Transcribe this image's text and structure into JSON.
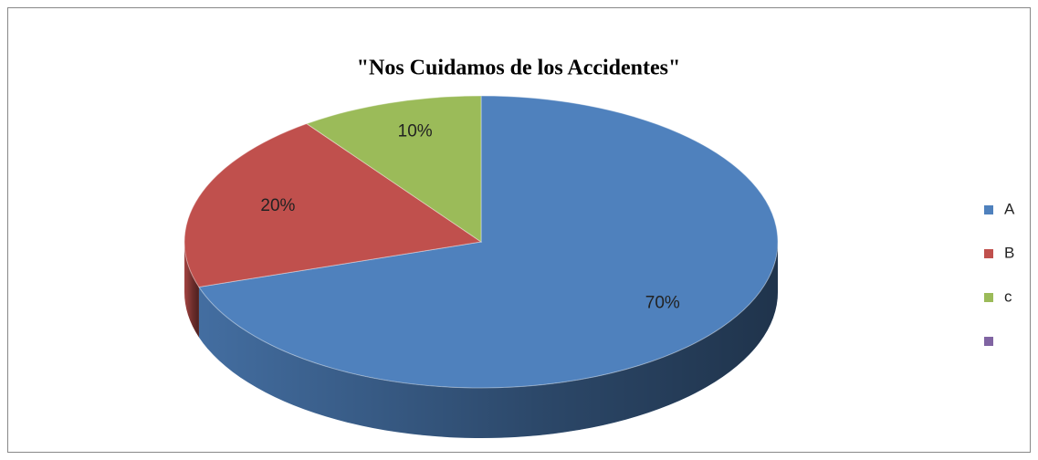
{
  "chart_data": {
    "type": "pie3d",
    "title": "\"Nos Cuidamos de los Accidentes\"",
    "categories": [
      "A",
      "B",
      "c",
      null
    ],
    "values": [
      70,
      20,
      10,
      0
    ],
    "value_labels": [
      "70%",
      "20%",
      "10%",
      null
    ],
    "colors": [
      "#4f81bd",
      "#c0504d",
      "#9bbb59",
      "#8064a2"
    ],
    "legend": "right"
  }
}
